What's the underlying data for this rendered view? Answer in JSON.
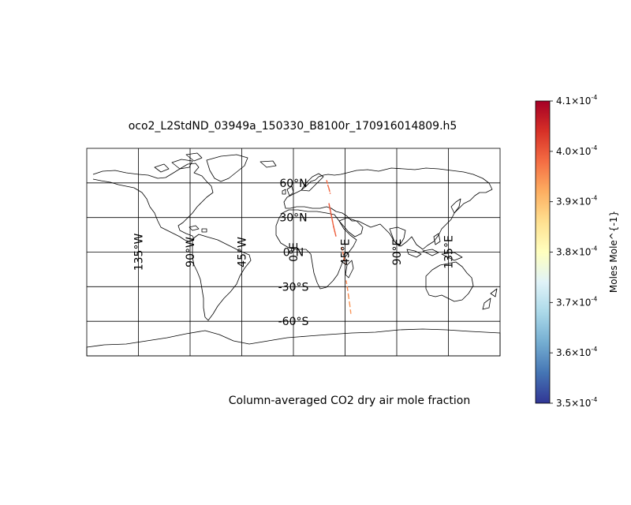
{
  "map": {
    "title": "oco2_L2StdND_03949a_150330_B8100r_170916014809.h5",
    "caption": "Column-averaged CO2 dry air mole fraction",
    "projection": "equirectangular",
    "extent": {
      "lon": [
        -180,
        180
      ],
      "lat": [
        -90,
        90
      ]
    },
    "meridians": [
      {
        "lon": -135,
        "label": "135°W"
      },
      {
        "lon": -90,
        "label": "90°W"
      },
      {
        "lon": -45,
        "label": "45°W"
      },
      {
        "lon": 0,
        "label": "0°E"
      },
      {
        "lon": 45,
        "label": "45°E"
      },
      {
        "lon": 90,
        "label": "90°E"
      },
      {
        "lon": 135,
        "label": "135°E"
      }
    ],
    "parallels": [
      {
        "lat": 60,
        "label": "60°N"
      },
      {
        "lat": 30,
        "label": "30°N"
      },
      {
        "lat": 0,
        "label": "0°N"
      },
      {
        "lat": -30,
        "label": "-30°S"
      },
      {
        "lat": -60,
        "label": "-60°S"
      }
    ]
  },
  "colorbar": {
    "label": "Moles Mole^{-1}",
    "range": [
      0.00035,
      0.00041
    ],
    "ticks": [
      {
        "value": 0.00035,
        "mantissa": "3.5",
        "times": "×10",
        "exp": "-4"
      },
      {
        "value": 0.00036,
        "mantissa": "3.6",
        "times": "×10",
        "exp": "-4"
      },
      {
        "value": 0.00037,
        "mantissa": "3.7",
        "times": "×10",
        "exp": "-4"
      },
      {
        "value": 0.00038,
        "mantissa": "3.8",
        "times": "×10",
        "exp": "-4"
      },
      {
        "value": 0.00039,
        "mantissa": "3.9",
        "times": "×10",
        "exp": "-4"
      },
      {
        "value": 0.0004,
        "mantissa": "4.0",
        "times": "×10",
        "exp": "-4"
      },
      {
        "value": 0.00041,
        "mantissa": "4.1",
        "times": "×10",
        "exp": "-4"
      }
    ],
    "colors": [
      "#313695",
      "#4575b4",
      "#74add1",
      "#abd9e9",
      "#e0f3f8",
      "#ffffbf",
      "#fee090",
      "#fdae61",
      "#f46d43",
      "#d73027",
      "#a50026"
    ]
  },
  "chart_data": {
    "type": "scatter",
    "series": [
      {
        "lon": [
          29,
          30,
          31,
          32
        ],
        "lat": [
          62,
          58,
          55,
          51
        ],
        "values": [
          0.000398,
          0.000399,
          0.000398,
          0.000399
        ]
      },
      {
        "lon": [
          31,
          32,
          33,
          34,
          35,
          36,
          37
        ],
        "lat": [
          42,
          37,
          32,
          27,
          22,
          18,
          14
        ],
        "values": [
          0.0004,
          0.000401,
          0.0004,
          0.000399,
          0.0004,
          0.000399,
          0.0004
        ]
      },
      {
        "lon": [
          42,
          43,
          44,
          45
        ],
        "lat": [
          4,
          0,
          -5,
          -10
        ],
        "values": [
          0.000398,
          0.000397,
          0.000397,
          0.000398
        ]
      },
      {
        "lon": [
          46,
          47,
          48,
          49,
          50
        ],
        "lat": [
          -25,
          -31,
          -38,
          -45,
          -53
        ],
        "values": [
          0.000395,
          0.000396,
          0.000395,
          0.000394,
          0.000395
        ]
      }
    ]
  }
}
